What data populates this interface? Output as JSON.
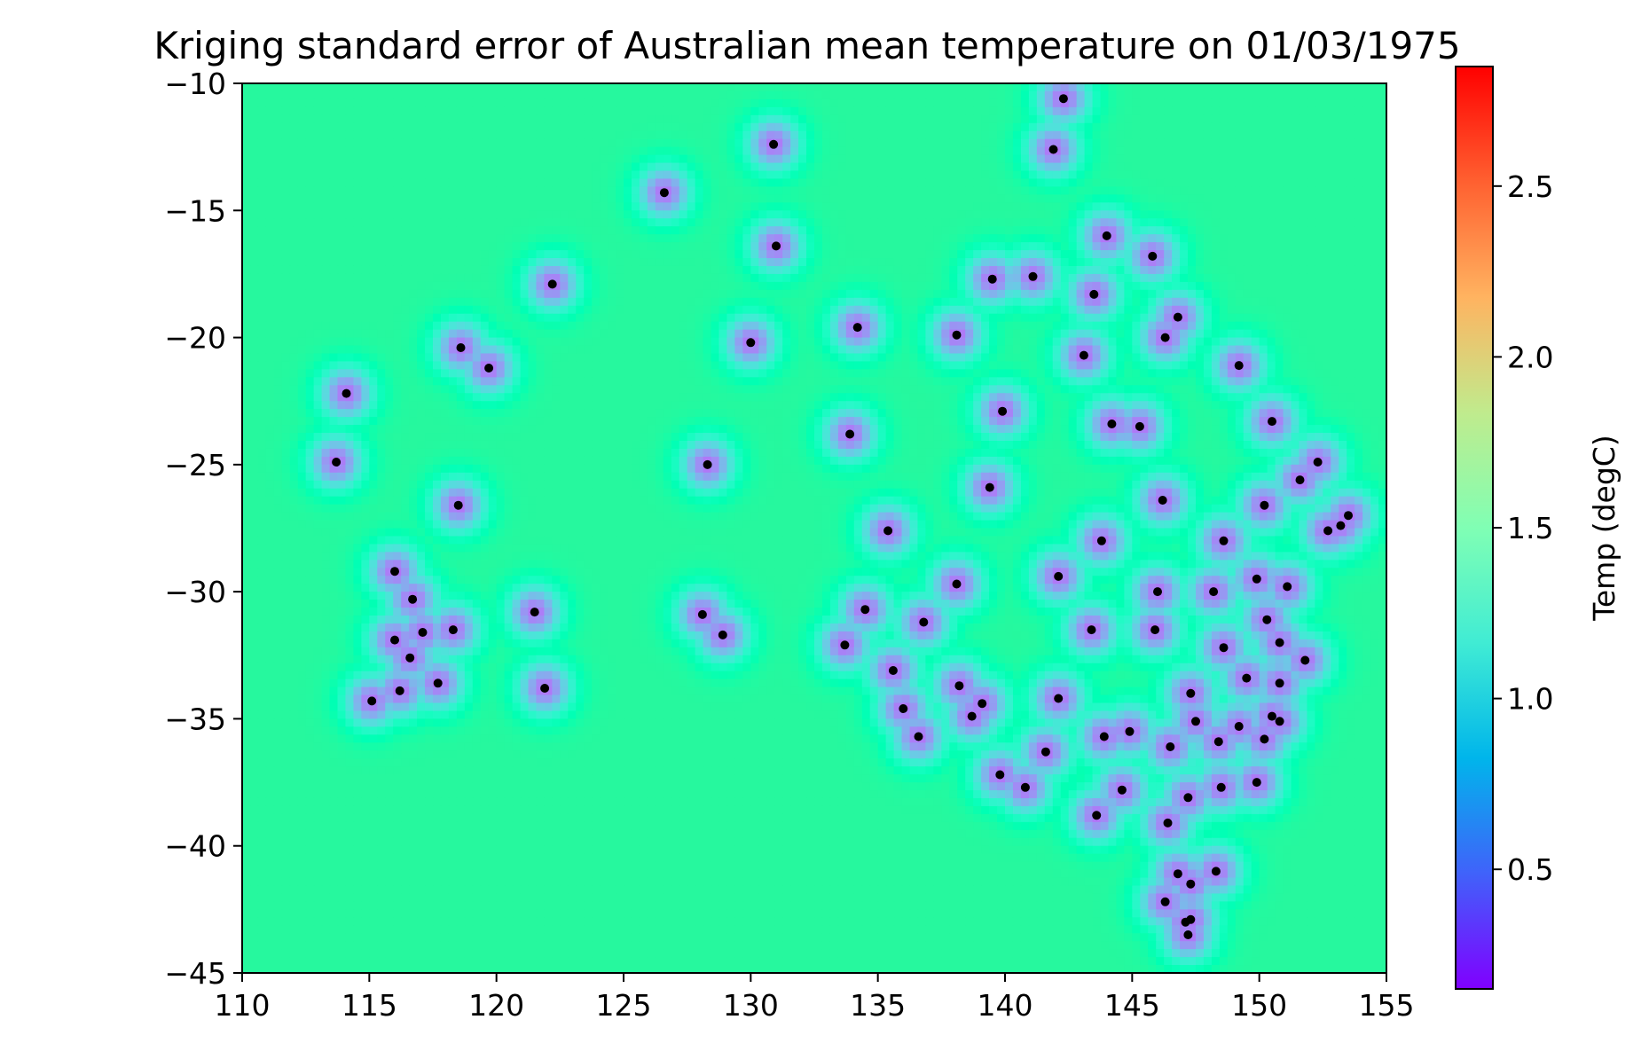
{
  "chart_data": {
    "type": "heatmap",
    "title": "Kriging standard error of Australian mean temperature on 01/03/1975",
    "xlabel": "",
    "ylabel": "",
    "xlim": [
      110,
      155
    ],
    "ylim": [
      -45,
      -10
    ],
    "x_ticks": [
      "110",
      "115",
      "120",
      "125",
      "130",
      "135",
      "140",
      "145",
      "150",
      "155"
    ],
    "y_ticks": [
      "−10",
      "−15",
      "−20",
      "−25",
      "−30",
      "−35",
      "−40",
      "−45"
    ],
    "colorbar": {
      "label": "Temp (degC)",
      "range": [
        0.15,
        2.85
      ],
      "colormap": "rainbow",
      "ticks": [
        "0.5",
        "1.0",
        "1.5",
        "2.0",
        "2.5"
      ]
    },
    "background_min": 1.85,
    "background_max": 2.85,
    "point_color": "#000000",
    "stations": [
      [
        142.3,
        -10.6
      ],
      [
        141.9,
        -12.6
      ],
      [
        130.9,
        -12.4
      ],
      [
        126.6,
        -14.3
      ],
      [
        131.0,
        -16.4
      ],
      [
        122.2,
        -17.9
      ],
      [
        118.6,
        -20.4
      ],
      [
        119.7,
        -21.2
      ],
      [
        114.1,
        -22.2
      ],
      [
        113.7,
        -24.9
      ],
      [
        118.5,
        -26.6
      ],
      [
        130.0,
        -20.2
      ],
      [
        134.2,
        -19.6
      ],
      [
        138.1,
        -19.9
      ],
      [
        139.5,
        -17.7
      ],
      [
        141.1,
        -17.6
      ],
      [
        144.0,
        -16.0
      ],
      [
        145.8,
        -16.8
      ],
      [
        146.8,
        -19.2
      ],
      [
        146.3,
        -20.0
      ],
      [
        143.5,
        -18.3
      ],
      [
        143.1,
        -20.7
      ],
      [
        149.2,
        -21.1
      ],
      [
        139.9,
        -22.9
      ],
      [
        144.2,
        -23.4
      ],
      [
        145.3,
        -23.5
      ],
      [
        150.5,
        -23.3
      ],
      [
        152.3,
        -24.9
      ],
      [
        151.6,
        -25.6
      ],
      [
        133.9,
        -23.8
      ],
      [
        128.3,
        -25.0
      ],
      [
        139.4,
        -25.9
      ],
      [
        146.2,
        -26.4
      ],
      [
        150.2,
        -26.6
      ],
      [
        152.7,
        -27.6
      ],
      [
        153.2,
        -27.4
      ],
      [
        153.5,
        -27.0
      ],
      [
        135.4,
        -27.6
      ],
      [
        143.8,
        -28.0
      ],
      [
        148.6,
        -28.0
      ],
      [
        116.0,
        -29.2
      ],
      [
        116.7,
        -30.3
      ],
      [
        116.0,
        -31.9
      ],
      [
        117.1,
        -31.6
      ],
      [
        118.3,
        -31.5
      ],
      [
        116.6,
        -32.6
      ],
      [
        116.2,
        -33.9
      ],
      [
        117.7,
        -33.6
      ],
      [
        115.1,
        -34.3
      ],
      [
        121.5,
        -30.8
      ],
      [
        121.9,
        -33.8
      ],
      [
        128.1,
        -30.9
      ],
      [
        128.9,
        -31.7
      ],
      [
        134.5,
        -30.7
      ],
      [
        133.7,
        -32.1
      ],
      [
        136.8,
        -31.2
      ],
      [
        138.1,
        -29.7
      ],
      [
        142.1,
        -29.4
      ],
      [
        146.0,
        -30.0
      ],
      [
        148.2,
        -30.0
      ],
      [
        149.9,
        -29.5
      ],
      [
        151.1,
        -29.8
      ],
      [
        150.3,
        -31.1
      ],
      [
        145.9,
        -31.5
      ],
      [
        143.4,
        -31.5
      ],
      [
        148.6,
        -32.2
      ],
      [
        150.8,
        -32.0
      ],
      [
        151.8,
        -32.7
      ],
      [
        135.6,
        -33.1
      ],
      [
        136.0,
        -34.6
      ],
      [
        136.6,
        -35.7
      ],
      [
        138.2,
        -33.7
      ],
      [
        139.1,
        -34.4
      ],
      [
        138.7,
        -34.9
      ],
      [
        142.1,
        -34.2
      ],
      [
        147.3,
        -34.0
      ],
      [
        149.5,
        -33.4
      ],
      [
        150.8,
        -33.6
      ],
      [
        147.5,
        -35.1
      ],
      [
        148.4,
        -35.9
      ],
      [
        149.2,
        -35.3
      ],
      [
        150.2,
        -35.8
      ],
      [
        150.5,
        -34.9
      ],
      [
        150.8,
        -35.1
      ],
      [
        143.9,
        -35.7
      ],
      [
        144.9,
        -35.5
      ],
      [
        146.5,
        -36.1
      ],
      [
        139.8,
        -37.2
      ],
      [
        140.8,
        -37.7
      ],
      [
        141.6,
        -36.3
      ],
      [
        144.6,
        -37.8
      ],
      [
        147.2,
        -38.1
      ],
      [
        148.5,
        -37.7
      ],
      [
        149.9,
        -37.5
      ],
      [
        143.6,
        -38.8
      ],
      [
        146.4,
        -39.1
      ],
      [
        146.8,
        -41.1
      ],
      [
        147.3,
        -41.5
      ],
      [
        148.3,
        -41.0
      ],
      [
        146.3,
        -42.2
      ],
      [
        147.3,
        -42.9
      ],
      [
        147.1,
        -43.0
      ],
      [
        147.2,
        -43.5
      ]
    ]
  }
}
